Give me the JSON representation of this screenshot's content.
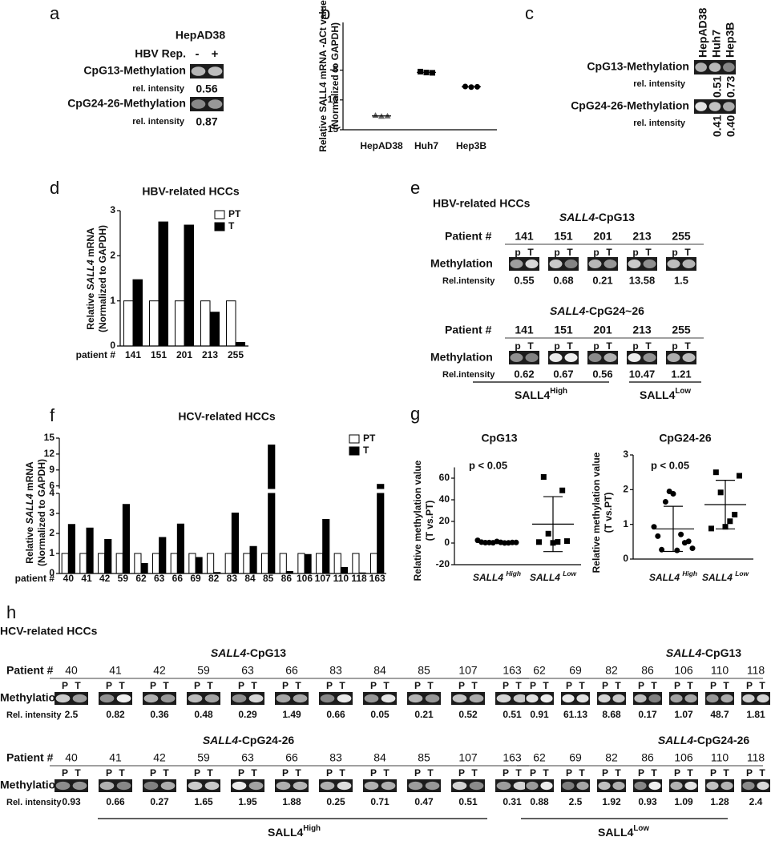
{
  "panel_labels": [
    "a",
    "b",
    "c",
    "d",
    "e",
    "f",
    "g",
    "h"
  ],
  "panel_a": {
    "title": "HepAD38",
    "lane_header": "HBV Rep.",
    "lanes": [
      "-",
      "+"
    ],
    "rows": [
      {
        "label": "CpG13-Methylation",
        "sub": "rel. intensity",
        "value": "0.56"
      },
      {
        "label": "CpG24-26-Methylation",
        "sub": "rel. intensity",
        "value": "0.87"
      }
    ]
  },
  "panel_c": {
    "lanes": [
      "HepAD38",
      "Huh7",
      "Hep3B"
    ],
    "rows": [
      {
        "label": "CpG13-Methylation",
        "sub": "rel. intensity",
        "values": [
          "0.51",
          "0.73"
        ]
      },
      {
        "label": "CpG24-26-Methylation",
        "sub": "rel. intensity",
        "values": [
          "0.41",
          "0.40"
        ]
      }
    ]
  },
  "panel_e": {
    "title": "HBV-related HCCs",
    "patient_label": "Patient #",
    "lane_labels": [
      "p",
      "T"
    ],
    "row_label": "Methylation",
    "sub": "Rel.intensity",
    "blocks": [
      {
        "title": [
          {
            "text": "SALL4",
            "italic": true
          },
          {
            "text": "-CpG13"
          }
        ],
        "patients": [
          "141",
          "151",
          "201",
          "213",
          "255"
        ],
        "values": [
          "0.55",
          "0.68",
          "0.21",
          "13.58",
          "1.5"
        ]
      },
      {
        "title": [
          {
            "text": "SALL4",
            "italic": true
          },
          {
            "text": "-CpG24~26"
          }
        ],
        "patients": [
          "141",
          "151",
          "201",
          "213",
          "255"
        ],
        "values": [
          "0.62",
          "0.67",
          "0.56",
          "10.47",
          "1.21"
        ]
      }
    ],
    "groups": [
      {
        "text": "SALL4",
        "sup": "High"
      },
      {
        "text": "SALL4",
        "sup": "Low"
      }
    ]
  },
  "panel_h": {
    "title": "HCV-related HCCs",
    "patient_label": "Patient #",
    "lane_labels": [
      "P",
      "T"
    ],
    "row_label": "Methylation",
    "sub": "Rel. intensity",
    "groups": [
      {
        "label": {
          "text": "SALL4",
          "sup": "High"
        },
        "blocks": [
          {
            "title": [
              {
                "text": "SALL4",
                "italic": true
              },
              {
                "text": "-CpG13"
              }
            ],
            "patients": [
              "40",
              "41",
              "42",
              "59",
              "63",
              "66",
              "83",
              "84",
              "85",
              "107",
              "163"
            ],
            "values": [
              "2.5",
              "0.82",
              "0.36",
              "0.48",
              "0.29",
              "1.49",
              "0.66",
              "0.05",
              "0.21",
              "0.52",
              "0.51"
            ]
          },
          {
            "title": [
              {
                "text": "SALL4",
                "italic": true
              },
              {
                "text": "-CpG24-26"
              }
            ],
            "patients": [
              "40",
              "41",
              "42",
              "59",
              "63",
              "66",
              "83",
              "84",
              "85",
              "107",
              "163"
            ],
            "values": [
              "0.93",
              "0.66",
              "0.27",
              "1.65",
              "1.95",
              "1.88",
              "0.25",
              "0.71",
              "0.47",
              "0.51",
              "0.31"
            ]
          }
        ]
      },
      {
        "label": {
          "text": "SALL4",
          "sup": "Low"
        },
        "blocks": [
          {
            "title": [
              {
                "text": "SALL4",
                "italic": true
              },
              {
                "text": "-CpG13"
              }
            ],
            "patients": [
              "62",
              "69",
              "82",
              "86",
              "106",
              "110",
              "118"
            ],
            "values": [
              "0.91",
              "61.13",
              "8.68",
              "0.17",
              "1.07",
              "48.7",
              "1.81"
            ]
          },
          {
            "title": [
              {
                "text": "SALL4",
                "italic": true
              },
              {
                "text": "-CpG24-26"
              }
            ],
            "patients": [
              "62",
              "69",
              "82",
              "86",
              "106",
              "110",
              "118"
            ],
            "values": [
              "0.88",
              "2.5",
              "1.92",
              "0.93",
              "1.09",
              "1.28",
              "2.4"
            ]
          }
        ]
      }
    ]
  },
  "chart_data": [
    {
      "type": "dot",
      "ylabel": [
        [
          {
            "text": "Relative SALL4 mRNA -ΔCt value"
          }
        ],
        [
          {
            "text": "(Normalized to GAPDH)"
          }
        ]
      ],
      "categories": [
        "HepAD38",
        "Huh7",
        "Hep3B"
      ],
      "values": [
        [
          -12.6,
          -12.75,
          -12.7
        ],
        [
          -5.25,
          -5.4,
          -5.45
        ],
        [
          -7.75,
          -7.85,
          -7.8
        ]
      ],
      "means": [
        -12.68,
        -5.37,
        -7.8
      ],
      "markers": [
        "triangle",
        "square",
        "circle"
      ],
      "color": "#000000",
      "ylim": [
        -15,
        3
      ],
      "yticks": [
        -15,
        -10,
        -5
      ]
    },
    {
      "type": "bar",
      "title": "HBV-related HCCs",
      "ylabel": [
        [
          {
            "text": "Relative"
          },
          {
            "text": "SALL4",
            "italic": true
          },
          {
            "text": "mRNA"
          }
        ],
        [
          {
            "text": "(Normalized to GAPDH)"
          }
        ]
      ],
      "xlabel": "patient #",
      "categories": [
        "141",
        "151",
        "201",
        "213",
        "255"
      ],
      "series": [
        {
          "name": "PT",
          "color": "#ffffff",
          "values": [
            1,
            1,
            1,
            1,
            1
          ]
        },
        {
          "name": "T",
          "color": "#000000",
          "values": [
            1.47,
            2.75,
            2.68,
            0.75,
            0.08
          ]
        }
      ],
      "ylim": [
        0,
        3
      ],
      "yticks": [
        0,
        1,
        2,
        3
      ],
      "legend": "upper right"
    },
    {
      "type": "bar",
      "title": "HCV-related HCCs",
      "ylabel": [
        [
          {
            "text": "Relative"
          },
          {
            "text": "SALL4",
            "italic": true
          },
          {
            "text": "mRNA"
          }
        ],
        [
          {
            "text": "(Normalized to GAPDH)"
          }
        ]
      ],
      "xlabel": "patient #",
      "categories": [
        "40",
        "41",
        "42",
        "59",
        "62",
        "63",
        "66",
        "69",
        "82",
        "83",
        "84",
        "85",
        "86",
        "106",
        "107",
        "110",
        "118",
        "163"
      ],
      "series": [
        {
          "name": "PT",
          "color": "#ffffff",
          "values": [
            1,
            1,
            1,
            1,
            1,
            1,
            1,
            1,
            1,
            1,
            1,
            1,
            1,
            1,
            1,
            1,
            1,
            1
          ]
        },
        {
          "name": "T",
          "color": "#000000",
          "values": [
            2.45,
            2.27,
            1.7,
            3.45,
            0.5,
            1.8,
            2.47,
            0.8,
            0.05,
            3.02,
            1.35,
            13.7,
            0.1,
            0.95,
            2.7,
            0.3,
            0.03,
            6.3
          ]
        }
      ],
      "ylim": [
        0,
        15
      ],
      "yticks": [
        0,
        1,
        2,
        3,
        4,
        6,
        9,
        12,
        15
      ],
      "ybreak": [
        4,
        5.5
      ],
      "legend": "upper right"
    },
    {
      "type": "dot",
      "title": "CpG13",
      "annotation": "p < 0.05",
      "ylabel": [
        [
          {
            "text": "Relative methylation value"
          }
        ],
        [
          {
            "text": "(T vs.PT)"
          }
        ]
      ],
      "category_prefix": "SALL4",
      "categories": [
        "High",
        "Low"
      ],
      "values": [
        [
          2.5,
          0.82,
          0.36,
          0.48,
          0.29,
          1.49,
          0.66,
          0.05,
          0.21,
          0.52,
          0.51
        ],
        [
          0.91,
          61.13,
          8.68,
          0.17,
          1.07,
          48.7,
          1.81
        ]
      ],
      "means": [
        0.72,
        17.5
      ],
      "sd": [
        0.7,
        25.4
      ],
      "markers": [
        "circle",
        "square"
      ],
      "color": "#000000",
      "ylim": [
        -20,
        70
      ],
      "yticks": [
        -20,
        0,
        20,
        40,
        60
      ]
    },
    {
      "type": "dot",
      "title": "CpG24-26",
      "annotation": "p < 0.05",
      "ylabel": [
        [
          {
            "text": "Relative methylation value"
          }
        ],
        [
          {
            "text": "(T vs.PT)"
          }
        ]
      ],
      "category_prefix": "SALL4",
      "categories": [
        "High",
        "Low"
      ],
      "values": [
        [
          0.93,
          0.66,
          0.27,
          1.65,
          1.95,
          1.88,
          0.25,
          0.71,
          0.47,
          0.51,
          0.31
        ],
        [
          0.88,
          2.5,
          1.92,
          0.93,
          1.09,
          1.28,
          2.4
        ]
      ],
      "means": [
        0.87,
        1.57
      ],
      "sd": [
        0.65,
        0.7
      ],
      "markers": [
        "circle",
        "square"
      ],
      "color": "#000000",
      "ylim": [
        0,
        3
      ],
      "yticks": [
        0,
        1,
        2,
        3
      ]
    }
  ]
}
